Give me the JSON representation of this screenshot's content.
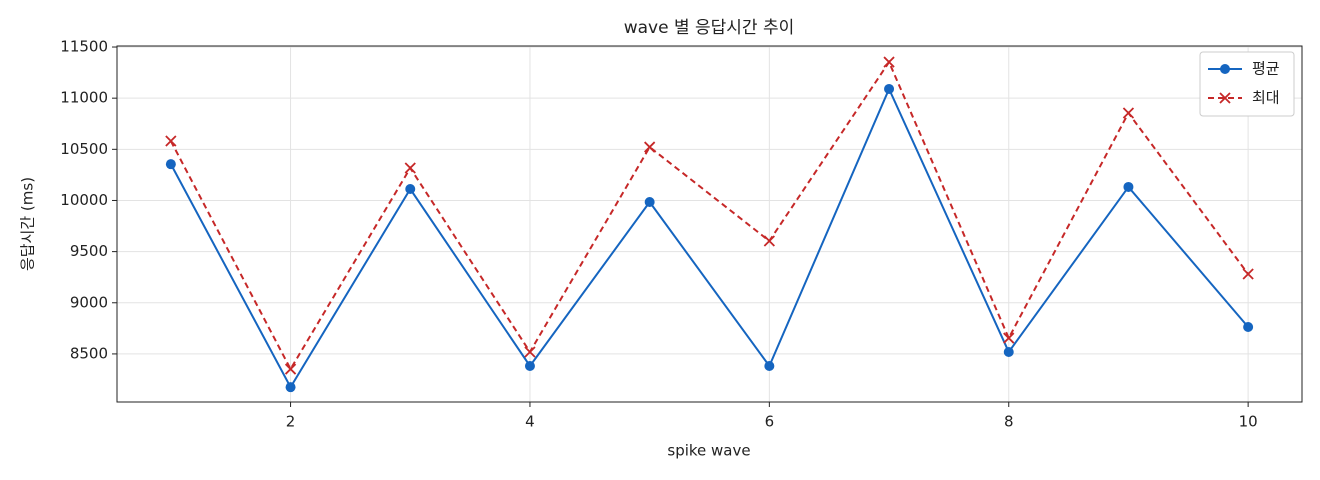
{
  "chart_data": {
    "type": "line",
    "title": "wave 별 응답시간 추이",
    "xlabel": "spike wave",
    "ylabel": "응답시간 (ms)",
    "x": [
      1,
      2,
      3,
      4,
      5,
      6,
      7,
      8,
      9,
      10
    ],
    "series": [
      {
        "name": "평균",
        "color": "#1565c0",
        "marker": "o",
        "linestyle": "solid",
        "values": [
          10355,
          8175,
          10112,
          8382,
          9985,
          8382,
          11090,
          8519,
          10132,
          8763
        ]
      },
      {
        "name": "최대",
        "color": "#c62828",
        "marker": "x",
        "linestyle": "dashed",
        "values": [
          10581,
          8352,
          10317,
          8519,
          10522,
          9604,
          11353,
          8655,
          10855,
          9281
        ]
      }
    ],
    "xlim": [
      0.55,
      10.45
    ],
    "xticks": [
      2,
      4,
      6,
      8,
      10
    ],
    "ylim": [
      8030,
      11510
    ],
    "yticks": [
      8500,
      9000,
      9500,
      10000,
      10500,
      11000,
      11500
    ],
    "grid": true,
    "legend": "upper right"
  }
}
